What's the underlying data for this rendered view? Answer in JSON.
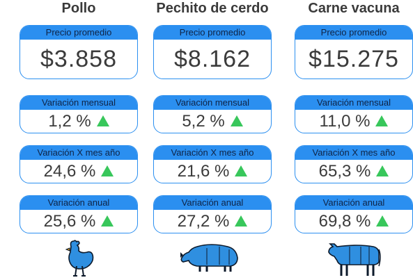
{
  "columns": [
    {
      "title": "Pollo",
      "precio_label": "Precio promedio",
      "precio_value": "$3.858",
      "mensual_label": "Variación mensual",
      "mensual_value": "1,2 %",
      "mes_anio_label": "Variación X mes año",
      "mes_anio_value": "24,6 %",
      "anual_label": "Variación anual",
      "anual_value": "25,6 %",
      "animal_icon": "chicken-icon"
    },
    {
      "title": "Pechito de cerdo",
      "precio_label": "Precio promedio",
      "precio_value": "$8.162",
      "mensual_label": "Variación mensual",
      "mensual_value": "5,2 %",
      "mes_anio_label": "Variación X mes año",
      "mes_anio_value": "21,6 %",
      "anual_label": "Variación anual",
      "anual_value": "27,2 %",
      "animal_icon": "pig-icon"
    },
    {
      "title": "Carne vacuna",
      "precio_label": "Precio promedio",
      "precio_value": "$15.275",
      "mensual_label": "Variación mensual",
      "mensual_value": "11,0 %",
      "mes_anio_label": "Variación X mes año",
      "mes_anio_value": "65,3 %",
      "anual_label": "Variación anual",
      "anual_value": "69,8 %",
      "animal_icon": "cow-icon"
    }
  ],
  "colors": {
    "card_header": "#2b8ff0",
    "up_arrow": "#38c75b",
    "animal_fill": "#2f8fe0"
  }
}
